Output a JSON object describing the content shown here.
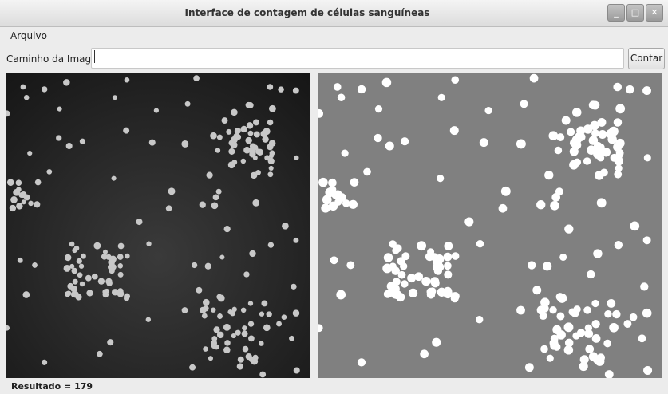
{
  "window": {
    "title": "Interface de contagem de células sanguíneas"
  },
  "menu": {
    "items": [
      "Arquivo"
    ]
  },
  "toolbar": {
    "label": "Caminho da Imagem",
    "button": "Contar"
  },
  "status": {
    "text": "Resultado = 179"
  }
}
